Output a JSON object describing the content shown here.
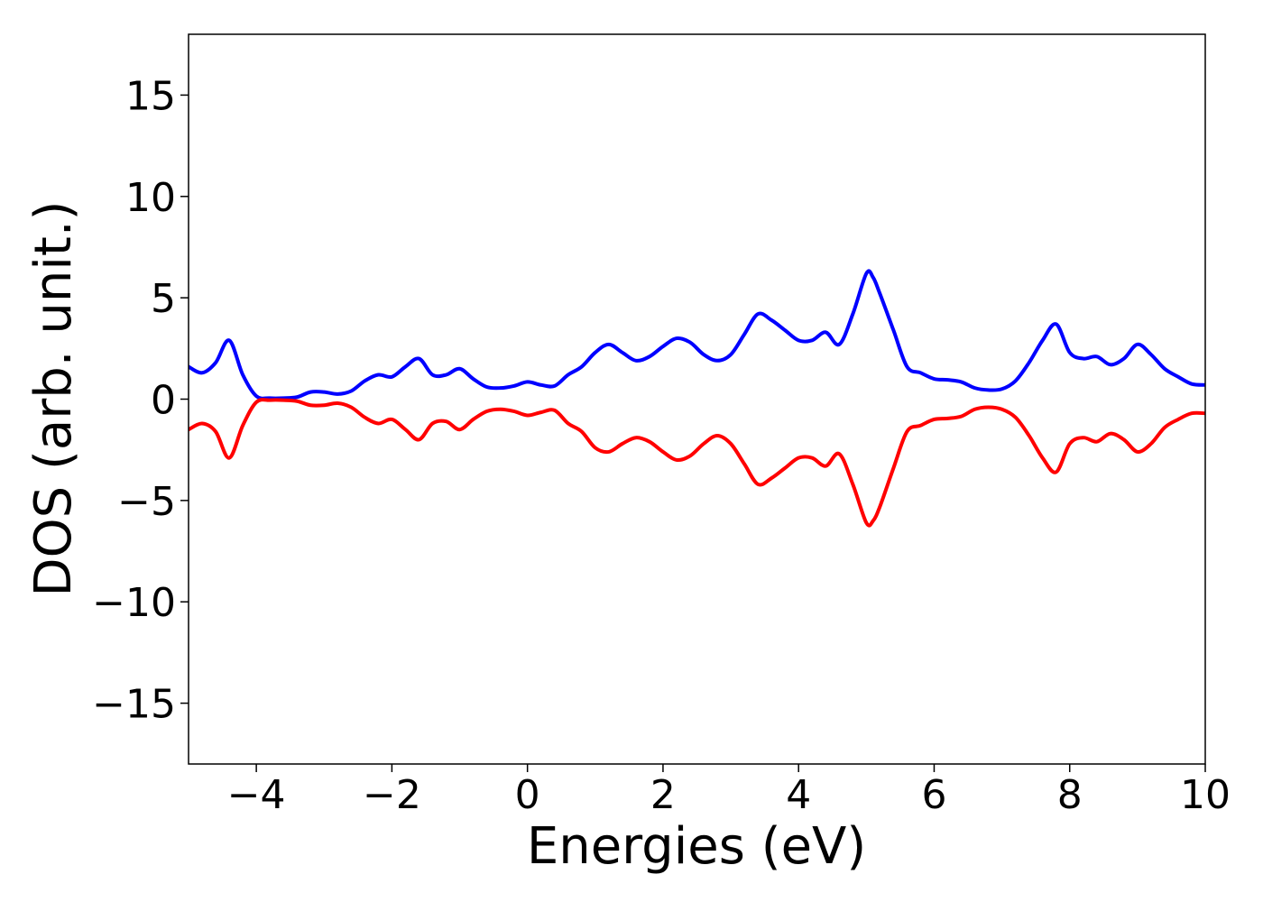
{
  "chart_data": {
    "type": "line",
    "title": "",
    "xlabel": "Energies (eV)",
    "ylabel": "DOS (arb. unit.)",
    "xlim": [
      -5,
      10
    ],
    "ylim": [
      -18,
      18
    ],
    "xticks": [
      -4,
      -2,
      0,
      2,
      4,
      6,
      8,
      10
    ],
    "xtick_labels": [
      "−4",
      "−2",
      "0",
      "2",
      "4",
      "6",
      "8",
      "10"
    ],
    "yticks": [
      15,
      10,
      5,
      0,
      -5,
      -10,
      -15
    ],
    "ytick_labels": [
      "15",
      "10",
      "5",
      "0",
      "−5",
      "−10",
      "−15"
    ],
    "grid": false,
    "legend": "none",
    "series": [
      {
        "color": "#0000ff",
        "x": [
          -5.0,
          -4.8,
          -4.6,
          -4.4,
          -4.2,
          -4.0,
          -3.8,
          -3.6,
          -3.4,
          -3.2,
          -3.0,
          -2.8,
          -2.6,
          -2.4,
          -2.2,
          -2.0,
          -1.8,
          -1.6,
          -1.4,
          -1.2,
          -1.0,
          -0.8,
          -0.6,
          -0.4,
          -0.2,
          0.0,
          0.2,
          0.4,
          0.6,
          0.8,
          1.0,
          1.2,
          1.4,
          1.6,
          1.8,
          2.0,
          2.2,
          2.4,
          2.6,
          2.8,
          3.0,
          3.2,
          3.4,
          3.6,
          3.8,
          4.0,
          4.2,
          4.4,
          4.6,
          4.8,
          5.0,
          5.1,
          5.2,
          5.4,
          5.6,
          5.8,
          6.0,
          6.2,
          6.4,
          6.6,
          6.8,
          7.0,
          7.2,
          7.4,
          7.6,
          7.8,
          8.0,
          8.2,
          8.4,
          8.6,
          8.8,
          9.0,
          9.2,
          9.4,
          9.6,
          9.8,
          10.0
        ],
        "y": [
          1.6,
          1.3,
          1.8,
          2.9,
          1.2,
          0.15,
          0.05,
          0.05,
          0.1,
          0.35,
          0.35,
          0.25,
          0.4,
          0.9,
          1.2,
          1.1,
          1.6,
          2.0,
          1.2,
          1.2,
          1.5,
          1.0,
          0.6,
          0.55,
          0.65,
          0.85,
          0.7,
          0.65,
          1.2,
          1.6,
          2.3,
          2.7,
          2.3,
          1.9,
          2.1,
          2.6,
          3.0,
          2.8,
          2.2,
          1.9,
          2.2,
          3.2,
          4.2,
          3.9,
          3.4,
          2.9,
          2.9,
          3.3,
          2.7,
          4.2,
          6.2,
          6.0,
          5.2,
          3.4,
          1.6,
          1.3,
          1.0,
          0.95,
          0.85,
          0.55,
          0.45,
          0.5,
          0.9,
          1.8,
          2.9,
          3.7,
          2.3,
          2.0,
          2.1,
          1.7,
          2.0,
          2.7,
          2.2,
          1.5,
          1.1,
          0.75,
          0.7
        ]
      },
      {
        "color": "#ff0000",
        "x": [
          -5.0,
          -4.8,
          -4.6,
          -4.4,
          -4.2,
          -4.0,
          -3.8,
          -3.6,
          -3.4,
          -3.2,
          -3.0,
          -2.8,
          -2.6,
          -2.4,
          -2.2,
          -2.0,
          -1.8,
          -1.6,
          -1.4,
          -1.2,
          -1.0,
          -0.8,
          -0.6,
          -0.4,
          -0.2,
          0.0,
          0.2,
          0.4,
          0.6,
          0.8,
          1.0,
          1.2,
          1.4,
          1.6,
          1.8,
          2.0,
          2.2,
          2.4,
          2.6,
          2.8,
          3.0,
          3.2,
          3.4,
          3.6,
          3.8,
          4.0,
          4.2,
          4.4,
          4.6,
          4.8,
          5.0,
          5.1,
          5.2,
          5.4,
          5.6,
          5.8,
          6.0,
          6.2,
          6.4,
          6.6,
          6.8,
          7.0,
          7.2,
          7.4,
          7.6,
          7.8,
          8.0,
          8.2,
          8.4,
          8.6,
          8.8,
          9.0,
          9.2,
          9.4,
          9.6,
          9.8,
          10.0
        ],
        "y": [
          -1.5,
          -1.2,
          -1.6,
          -2.9,
          -1.3,
          -0.15,
          -0.05,
          -0.05,
          -0.1,
          -0.3,
          -0.3,
          -0.2,
          -0.4,
          -0.9,
          -1.2,
          -1.0,
          -1.5,
          -2.0,
          -1.2,
          -1.1,
          -1.5,
          -1.0,
          -0.6,
          -0.5,
          -0.6,
          -0.8,
          -0.65,
          -0.55,
          -1.2,
          -1.6,
          -2.4,
          -2.6,
          -2.2,
          -1.9,
          -2.1,
          -2.6,
          -3.0,
          -2.8,
          -2.2,
          -1.8,
          -2.2,
          -3.2,
          -4.2,
          -3.9,
          -3.4,
          -2.9,
          -2.9,
          -3.3,
          -2.7,
          -4.2,
          -6.1,
          -6.0,
          -5.3,
          -3.4,
          -1.6,
          -1.3,
          -1.0,
          -0.95,
          -0.85,
          -0.5,
          -0.4,
          -0.5,
          -0.9,
          -1.8,
          -2.9,
          -3.6,
          -2.2,
          -1.9,
          -2.1,
          -1.7,
          -2.0,
          -2.6,
          -2.2,
          -1.4,
          -1.0,
          -0.7,
          -0.7
        ]
      }
    ]
  }
}
